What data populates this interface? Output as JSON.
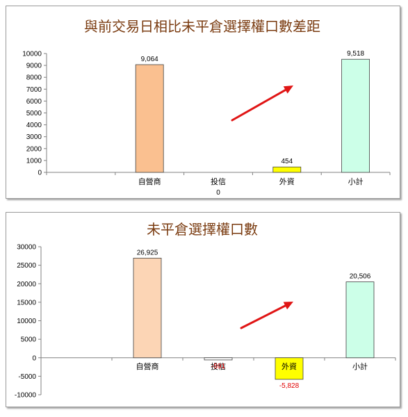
{
  "charts": [
    {
      "title": "與前交易日相比未平倉選擇權口數差距",
      "chart_data": {
        "type": "bar",
        "title": "與前交易日相比未平倉選擇權口數差距",
        "categories": [
          "",
          "自營商",
          "投信",
          "外資",
          "小計"
        ],
        "values": [
          null,
          9064,
          0,
          454,
          9518
        ],
        "data_labels": [
          "",
          "9,064",
          "0",
          "454",
          "9,518"
        ],
        "colors": [
          "",
          "#fac090",
          "#ffffff",
          "#ffff00",
          "#ccffe8"
        ],
        "yticks": [
          0,
          1000,
          2000,
          3000,
          4000,
          5000,
          6000,
          7000,
          8000,
          9000,
          10000
        ],
        "ylim": [
          0,
          10000
        ],
        "grid": false,
        "annotation": "red upward arrow"
      }
    },
    {
      "title": "未平倉選擇權口數",
      "chart_data": {
        "type": "bar",
        "title": "未平倉選擇權口數",
        "categories": [
          "",
          "自營商",
          "投信",
          "外資",
          "小計"
        ],
        "values": [
          null,
          26925,
          -591,
          -5828,
          20506
        ],
        "data_labels": [
          "",
          "26,925",
          "-591",
          "-5,828",
          "20,506"
        ],
        "colors": [
          "",
          "#fcd5b5",
          "#ffffff",
          "#ffff00",
          "#ccffe8"
        ],
        "yticks": [
          -10000,
          -5000,
          0,
          5000,
          10000,
          15000,
          20000,
          25000,
          30000
        ],
        "ylim": [
          -10000,
          30000
        ],
        "grid": false,
        "annotation": "red upward arrow"
      }
    }
  ]
}
